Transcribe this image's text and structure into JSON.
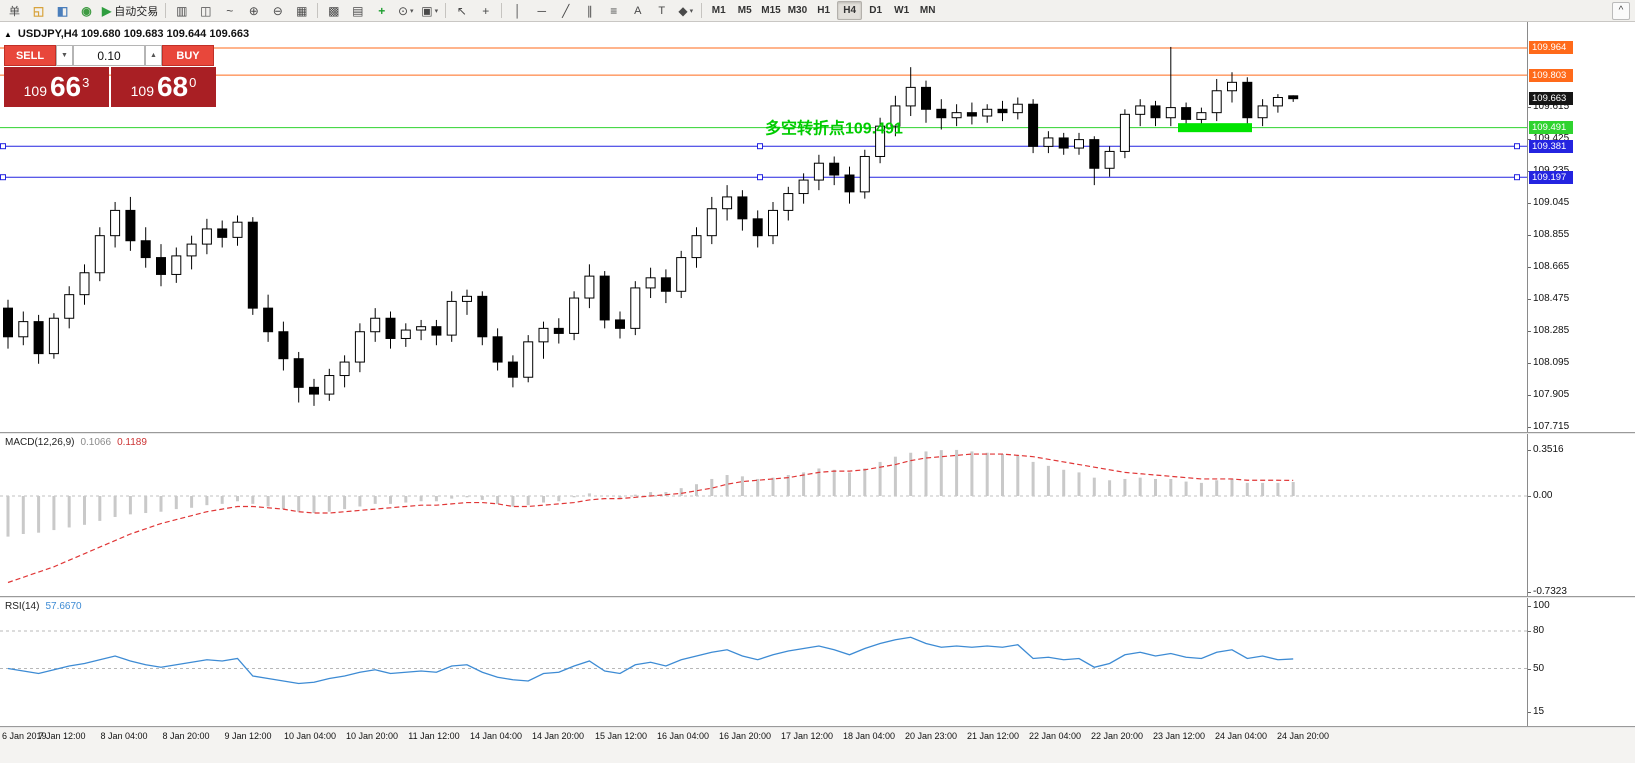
{
  "toolbar": {
    "collapse_label": "^",
    "items": [
      {
        "name": "new-order-button",
        "label": "单",
        "type": "textbtn"
      },
      {
        "name": "market-watch-icon",
        "glyph": "◱",
        "color": "#d8a33c"
      },
      {
        "name": "data-window-icon",
        "glyph": "◧",
        "color": "#4a7ebb"
      },
      {
        "name": "navigator-icon",
        "glyph": "◉",
        "color": "#3f9b42"
      },
      {
        "name": "autotrading-button",
        "glyph": "▶",
        "color": "#2f9e3f",
        "label": "自动交易"
      },
      {
        "type": "sep"
      },
      {
        "name": "bar-chart-icon",
        "glyph": "▥"
      },
      {
        "name": "candlestick-chart-icon",
        "glyph": "◫"
      },
      {
        "name": "line-chart-icon",
        "glyph": "~"
      },
      {
        "name": "zoom-in-icon",
        "glyph": "⊕"
      },
      {
        "name": "zoom-out-icon",
        "glyph": "⊖"
      },
      {
        "name": "tile-windows-icon",
        "glyph": "▦"
      },
      {
        "type": "sep"
      },
      {
        "name": "auto-arrange-icon",
        "glyph": "▩"
      },
      {
        "name": "cascade-icon",
        "glyph": "▤"
      },
      {
        "name": "indicators-icon",
        "glyph": "+",
        "color": "#1c9e2f"
      },
      {
        "name": "periods-icon",
        "glyph": "⊙",
        "dropdown": true
      },
      {
        "name": "templates-icon",
        "glyph": "▣",
        "dropdown": true
      },
      {
        "type": "sep"
      },
      {
        "name": "cursor-icon",
        "glyph": "↖"
      },
      {
        "name": "crosshair-icon",
        "glyph": "+"
      },
      {
        "type": "sep"
      },
      {
        "name": "vertical-line-icon",
        "glyph": "│"
      },
      {
        "name": "horizontal-line-icon",
        "glyph": "─"
      },
      {
        "name": "trendline-icon",
        "glyph": "╱"
      },
      {
        "name": "channel-icon",
        "glyph": "∥"
      },
      {
        "name": "fibonacci-icon",
        "glyph": "≡"
      },
      {
        "name": "text-icon",
        "label": "A",
        "type": "textbtn"
      },
      {
        "name": "text-label-icon",
        "label": "T",
        "type": "textbtn"
      },
      {
        "name": "arrows-icon",
        "glyph": "◆",
        "dropdown": true
      },
      {
        "type": "sep"
      },
      {
        "name": "tf-m1-button",
        "label": "M1",
        "type": "tf"
      },
      {
        "name": "tf-m5-button",
        "label": "M5",
        "type": "tf"
      },
      {
        "name": "tf-m15-button",
        "label": "M15",
        "type": "tf"
      },
      {
        "name": "tf-m30-button",
        "label": "M30",
        "type": "tf"
      },
      {
        "name": "tf-h1-button",
        "label": "H1",
        "type": "tf"
      },
      {
        "name": "tf-h4-button",
        "label": "H4",
        "type": "tf",
        "active": true
      },
      {
        "name": "tf-d1-button",
        "label": "D1",
        "type": "tf"
      },
      {
        "name": "tf-w1-button",
        "label": "W1",
        "type": "tf"
      },
      {
        "name": "tf-mn-button",
        "label": "MN",
        "type": "tf"
      }
    ]
  },
  "chart": {
    "marker": "▲",
    "title": "USDJPY,H4 109.680 109.683 109.644 109.663",
    "trade_panel": {
      "sell_label": "SELL",
      "buy_label": "BUY",
      "volume": "0.10",
      "dropdown_glyph": "▼",
      "stepper_glyph": "▲",
      "sell_prefix": "109",
      "sell_big": "66",
      "sell_sup": "3",
      "buy_prefix": "109",
      "buy_big": "68",
      "buy_sup": "0"
    },
    "annotation": {
      "text": "多空转折点109.491",
      "color": "#00cc00"
    },
    "highlight": {
      "price": 109.491,
      "x": 1178,
      "width": 74,
      "color": "#00e400"
    },
    "hlines": [
      {
        "label": "109.964",
        "price": 109.964,
        "color": "#ff6a1a",
        "selected": false
      },
      {
        "label": "109.803",
        "price": 109.803,
        "color": "#ff6a1a",
        "selected": false
      },
      {
        "label": "109.491",
        "price": 109.491,
        "color": "#2fd32f",
        "selected": false
      },
      {
        "label": "109.381",
        "price": 109.381,
        "color": "#2424e0",
        "selected": true
      },
      {
        "label": "109.197",
        "price": 109.197,
        "color": "#2424e0",
        "selected": true
      }
    ],
    "current_price": {
      "label": "109.663",
      "price": 109.663,
      "bg": "#151515"
    },
    "scale_labels": [
      "109.615",
      "109.425",
      "109.235",
      "109.045",
      "108.855",
      "108.665",
      "108.475",
      "108.285",
      "108.095",
      "107.905",
      "107.715"
    ]
  },
  "macd_panel": {
    "label": "MACD(12,26,9)",
    "value_main": "0.1066",
    "value_signal": "0.1189",
    "scale": [
      {
        "text": "0.3516",
        "v": 0.3516
      },
      {
        "text": "0.00",
        "v": 0
      },
      {
        "text": "-0.7323",
        "v": -0.7323
      }
    ]
  },
  "rsi_panel": {
    "label": "RSI(14)",
    "value": "57.6670",
    "scale": [
      {
        "text": "100",
        "v": 100
      },
      {
        "text": "80",
        "v": 80
      },
      {
        "text": "50",
        "v": 50
      },
      {
        "text": "15",
        "v": 15
      }
    ]
  },
  "time_axis": {
    "labels": [
      "6 Jan 2019",
      "7 Jan 12:00",
      "8 Jan 04:00",
      "8 Jan 20:00",
      "9 Jan 12:00",
      "10 Jan 04:00",
      "10 Jan 20:00",
      "11 Jan 12:00",
      "14 Jan 04:00",
      "14 Jan 20:00",
      "15 Jan 12:00",
      "16 Jan 04:00",
      "16 Jan 20:00",
      "17 Jan 12:00",
      "18 Jan 04:00",
      "20 Jan 23:00",
      "21 Jan 12:00",
      "22 Jan 04:00",
      "22 Jan 20:00",
      "23 Jan 12:00",
      "24 Jan 04:00",
      "24 Jan 20:00"
    ]
  },
  "chart_data": [
    {
      "type": "candlestick",
      "symbol": "USDJPY",
      "timeframe": "H4",
      "ylim": [
        107.685,
        110.118
      ],
      "candles": [
        [
          108.42,
          108.47,
          108.18,
          108.25
        ],
        [
          108.25,
          108.4,
          108.2,
          108.34
        ],
        [
          108.34,
          108.38,
          108.09,
          108.15
        ],
        [
          108.15,
          108.39,
          108.12,
          108.36
        ],
        [
          108.36,
          108.55,
          108.3,
          108.5
        ],
        [
          108.5,
          108.68,
          108.44,
          108.63
        ],
        [
          108.63,
          108.9,
          108.58,
          108.85
        ],
        [
          108.85,
          109.05,
          108.78,
          109.0
        ],
        [
          109.0,
          109.08,
          108.76,
          108.82
        ],
        [
          108.82,
          108.9,
          108.66,
          108.72
        ],
        [
          108.72,
          108.8,
          108.55,
          108.62
        ],
        [
          108.62,
          108.78,
          108.57,
          108.73
        ],
        [
          108.73,
          108.85,
          108.65,
          108.8
        ],
        [
          108.8,
          108.95,
          108.74,
          108.89
        ],
        [
          108.89,
          108.94,
          108.78,
          108.84
        ],
        [
          108.84,
          108.97,
          108.79,
          108.93
        ],
        [
          108.93,
          108.96,
          108.38,
          108.42
        ],
        [
          108.42,
          108.5,
          108.22,
          108.28
        ],
        [
          108.28,
          108.34,
          108.05,
          108.12
        ],
        [
          108.12,
          108.16,
          107.86,
          107.95
        ],
        [
          107.95,
          108.0,
          107.84,
          107.91
        ],
        [
          107.91,
          108.06,
          107.87,
          108.02
        ],
        [
          108.02,
          108.14,
          107.95,
          108.1
        ],
        [
          108.1,
          108.33,
          108.04,
          108.28
        ],
        [
          108.28,
          108.42,
          108.22,
          108.36
        ],
        [
          108.36,
          108.4,
          108.18,
          108.24
        ],
        [
          108.24,
          108.33,
          108.19,
          108.29
        ],
        [
          108.29,
          108.35,
          108.23,
          108.31
        ],
        [
          108.31,
          108.35,
          108.2,
          108.26
        ],
        [
          108.26,
          108.52,
          108.22,
          108.46
        ],
        [
          108.46,
          108.53,
          108.38,
          108.49
        ],
        [
          108.49,
          108.52,
          108.2,
          108.25
        ],
        [
          108.25,
          108.3,
          108.05,
          108.1
        ],
        [
          108.1,
          108.14,
          107.95,
          108.01
        ],
        [
          108.01,
          108.26,
          107.98,
          108.22
        ],
        [
          108.22,
          108.34,
          108.12,
          108.3
        ],
        [
          108.3,
          108.36,
          108.21,
          108.27
        ],
        [
          108.27,
          108.52,
          108.23,
          108.48
        ],
        [
          108.48,
          108.68,
          108.42,
          108.61
        ],
        [
          108.61,
          108.64,
          108.3,
          108.35
        ],
        [
          108.35,
          108.4,
          108.24,
          108.3
        ],
        [
          108.3,
          108.58,
          108.26,
          108.54
        ],
        [
          108.54,
          108.66,
          108.48,
          108.6
        ],
        [
          108.6,
          108.65,
          108.45,
          108.52
        ],
        [
          108.52,
          108.76,
          108.48,
          108.72
        ],
        [
          108.72,
          108.9,
          108.66,
          108.85
        ],
        [
          108.85,
          109.08,
          108.8,
          109.01
        ],
        [
          109.01,
          109.15,
          108.94,
          109.08
        ],
        [
          109.08,
          109.12,
          108.88,
          108.95
        ],
        [
          108.95,
          109.0,
          108.78,
          108.85
        ],
        [
          108.85,
          109.05,
          108.8,
          109.0
        ],
        [
          109.0,
          109.14,
          108.94,
          109.1
        ],
        [
          109.1,
          109.22,
          109.04,
          109.18
        ],
        [
          109.18,
          109.33,
          109.12,
          109.28
        ],
        [
          109.28,
          109.32,
          109.15,
          109.21
        ],
        [
          109.21,
          109.26,
          109.04,
          109.11
        ],
        [
          109.11,
          109.36,
          109.07,
          109.32
        ],
        [
          109.32,
          109.55,
          109.28,
          109.5
        ],
        [
          109.5,
          109.68,
          109.44,
          109.62
        ],
        [
          109.62,
          109.85,
          109.56,
          109.73
        ],
        [
          109.73,
          109.77,
          109.52,
          109.6
        ],
        [
          109.6,
          109.66,
          109.48,
          109.55
        ],
        [
          109.55,
          109.63,
          109.5,
          109.58
        ],
        [
          109.58,
          109.64,
          109.51,
          109.56
        ],
        [
          109.56,
          109.63,
          109.52,
          109.6
        ],
        [
          109.6,
          109.65,
          109.53,
          109.58
        ],
        [
          109.58,
          109.67,
          109.54,
          109.63
        ],
        [
          109.63,
          109.66,
          109.34,
          109.38
        ],
        [
          109.38,
          109.47,
          109.34,
          109.43
        ],
        [
          109.43,
          109.46,
          109.33,
          109.37
        ],
        [
          109.37,
          109.46,
          109.33,
          109.42
        ],
        [
          109.42,
          109.44,
          109.15,
          109.25
        ],
        [
          109.25,
          109.38,
          109.2,
          109.35
        ],
        [
          109.35,
          109.6,
          109.31,
          109.57
        ],
        [
          109.57,
          109.66,
          109.5,
          109.62
        ],
        [
          109.62,
          109.65,
          109.5,
          109.55
        ],
        [
          109.55,
          109.97,
          109.5,
          109.61
        ],
        [
          109.61,
          109.64,
          109.47,
          109.54
        ],
        [
          109.54,
          109.61,
          109.49,
          109.58
        ],
        [
          109.58,
          109.78,
          109.53,
          109.71
        ],
        [
          109.71,
          109.82,
          109.64,
          109.76
        ],
        [
          109.76,
          109.79,
          109.49,
          109.55
        ],
        [
          109.55,
          109.66,
          109.5,
          109.62
        ],
        [
          109.62,
          109.69,
          109.58,
          109.67
        ],
        [
          109.68,
          109.683,
          109.644,
          109.663
        ]
      ]
    },
    {
      "type": "bar",
      "name": "MACD",
      "params": "(12,26,9)",
      "ylim": [
        -0.763,
        0.473
      ],
      "values": [
        -0.31,
        -0.29,
        -0.28,
        -0.26,
        -0.24,
        -0.22,
        -0.19,
        -0.16,
        -0.14,
        -0.13,
        -0.12,
        -0.1,
        -0.09,
        -0.07,
        -0.06,
        -0.04,
        -0.06,
        -0.08,
        -0.1,
        -0.12,
        -0.13,
        -0.12,
        -0.1,
        -0.08,
        -0.06,
        -0.06,
        -0.05,
        -0.04,
        -0.04,
        -0.02,
        -0.01,
        -0.03,
        -0.06,
        -0.08,
        -0.07,
        -0.05,
        -0.04,
        -0.01,
        0.02,
        0.0,
        -0.02,
        0.01,
        0.03,
        0.03,
        0.06,
        0.09,
        0.13,
        0.16,
        0.15,
        0.13,
        0.14,
        0.16,
        0.18,
        0.21,
        0.2,
        0.18,
        0.21,
        0.26,
        0.3,
        0.33,
        0.34,
        0.35,
        0.3516,
        0.34,
        0.33,
        0.32,
        0.31,
        0.26,
        0.23,
        0.2,
        0.18,
        0.14,
        0.12,
        0.13,
        0.14,
        0.13,
        0.13,
        0.11,
        0.1,
        0.12,
        0.13,
        0.1,
        0.1,
        0.1,
        0.1066
      ],
      "signal": [
        -0.66,
        -0.62,
        -0.58,
        -0.54,
        -0.49,
        -0.44,
        -0.39,
        -0.34,
        -0.29,
        -0.25,
        -0.21,
        -0.18,
        -0.15,
        -0.12,
        -0.1,
        -0.08,
        -0.08,
        -0.09,
        -0.1,
        -0.12,
        -0.13,
        -0.13,
        -0.12,
        -0.11,
        -0.1,
        -0.09,
        -0.08,
        -0.07,
        -0.07,
        -0.06,
        -0.05,
        -0.05,
        -0.06,
        -0.08,
        -0.08,
        -0.07,
        -0.06,
        -0.05,
        -0.03,
        -0.02,
        -0.02,
        -0.01,
        0.0,
        0.01,
        0.02,
        0.04,
        0.06,
        0.09,
        0.11,
        0.12,
        0.13,
        0.14,
        0.16,
        0.18,
        0.19,
        0.19,
        0.2,
        0.22,
        0.24,
        0.27,
        0.29,
        0.3,
        0.31,
        0.32,
        0.32,
        0.32,
        0.31,
        0.3,
        0.28,
        0.26,
        0.24,
        0.22,
        0.2,
        0.18,
        0.17,
        0.16,
        0.15,
        0.14,
        0.13,
        0.13,
        0.13,
        0.12,
        0.12,
        0.12,
        0.1189
      ]
    },
    {
      "type": "line",
      "name": "RSI",
      "ylim": [
        0,
        100
      ],
      "levels": [
        80,
        50
      ],
      "values": [
        50,
        48,
        46,
        49,
        52,
        54,
        57,
        60,
        56,
        53,
        51,
        53,
        55,
        57,
        56,
        58,
        44,
        42,
        40,
        38,
        39,
        42,
        44,
        47,
        49,
        46,
        47,
        48,
        47,
        52,
        53,
        47,
        43,
        41,
        40,
        46,
        47,
        52,
        56,
        48,
        46,
        53,
        55,
        52,
        57,
        60,
        63,
        65,
        60,
        57,
        61,
        64,
        66,
        68,
        65,
        61,
        66,
        70,
        73,
        75,
        70,
        67,
        68,
        67,
        68,
        67,
        69,
        58,
        59,
        57,
        58,
        51,
        54,
        61,
        63,
        60,
        62,
        59,
        58,
        63,
        65,
        58,
        60,
        57,
        57.667
      ]
    }
  ]
}
